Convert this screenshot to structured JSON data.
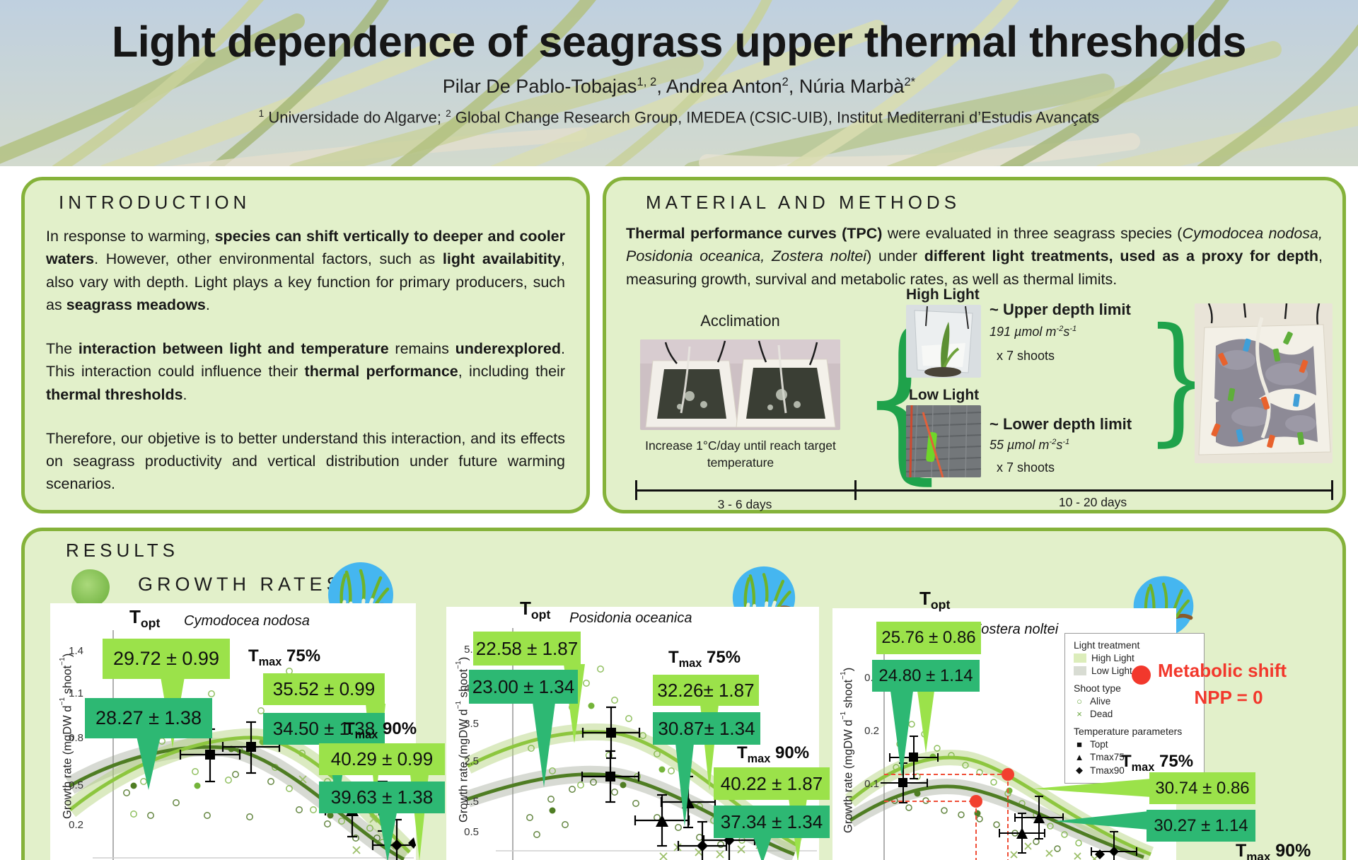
{
  "header": {
    "title": "Light dependence of seagrass upper thermal thresholds",
    "authors": [
      {
        "t": "Pilar De Pablo-Tobajas"
      },
      {
        "t": "1, 2",
        "sup": true
      },
      {
        "t": ", Andrea Anton"
      },
      {
        "t": "2",
        "sup": true
      },
      {
        "t": ", Núria Marbà"
      },
      {
        "t": "2*",
        "sup": true
      }
    ],
    "affiliations": [
      {
        "t": "1",
        "sup": true
      },
      {
        "t": " Universidade do Algarve; "
      },
      {
        "t": "2",
        "sup": true
      },
      {
        "t": " Global Change Research Group, IMEDEA (CSIC-UIB), Institut Mediterrani d’Estudis Avançats"
      }
    ]
  },
  "intro": {
    "heading": "INTRODUCTION",
    "p1": [
      {
        "t": "In response to warming, "
      },
      {
        "t": "species can shift vertically to deeper and cooler waters",
        "b": true
      },
      {
        "t": ". However, other environmental factors, such as "
      },
      {
        "t": "light availabitity",
        "b": true
      },
      {
        "t": ", also vary with depth. Light plays a key function for primary producers, such as "
      },
      {
        "t": "seagrass meadows",
        "b": true
      },
      {
        "t": "."
      }
    ],
    "p2": [
      {
        "t": "The "
      },
      {
        "t": "interaction between light and temperature",
        "b": true
      },
      {
        "t": " remains "
      },
      {
        "t": "underexplored",
        "b": true
      },
      {
        "t": ". This interaction could influence their "
      },
      {
        "t": "thermal performance",
        "b": true
      },
      {
        "t": ", including their "
      },
      {
        "t": "thermal thresholds",
        "b": true
      },
      {
        "t": "."
      }
    ],
    "p3": [
      {
        "t": "Therefore, our objetive is to better understand this interaction, and its effects on seagrass productivity and vertical distribution under future warming scenarios."
      }
    ]
  },
  "methods": {
    "heading": "MATERIAL AND METHODS",
    "p1": [
      {
        "t": "Thermal performance curves (TPC)",
        "b": true
      },
      {
        "t": " were evaluated in three seagrass species ("
      },
      {
        "t": "Cymodocea nodosa, Posidonia oceanica, Zostera noltei",
        "i": true
      },
      {
        "t": ") under "
      },
      {
        "t": "different light treatments, used as a proxy for depth",
        "b": true
      },
      {
        "t": ", measuring growth, survival and metabolic rates, as well as thermal limits."
      }
    ],
    "acclimation_label": "Acclimation",
    "acclimation_caption": "Increase 1°C/day until reach target temperature",
    "brace_left": "{",
    "brace_right": "}",
    "high_light_label": "High Light",
    "upper_depth_label": "~ Upper depth limit",
    "upper_irradiance": [
      {
        "t": "191  µmol m",
        "i": true
      },
      {
        "t": "-2",
        "i": true,
        "sup": true
      },
      {
        "t": "s",
        "i": true
      },
      {
        "t": "-1",
        "i": true,
        "sup": true
      }
    ],
    "upper_shoots": "x 7 shoots",
    "low_light_label": "Low Light",
    "lower_depth_label": "~ Lower depth limit",
    "lower_irradiance": [
      {
        "t": "55  µmol m",
        "i": true
      },
      {
        "t": "-2",
        "i": true,
        "sup": true
      },
      {
        "t": "s",
        "i": true
      },
      {
        "t": "-1",
        "i": true,
        "sup": true
      }
    ],
    "lower_shoots": "x 7 shoots",
    "timeline_left": "3 - 6 days",
    "timeline_right": "10 - 20 days"
  },
  "results": {
    "heading": "RESULTS",
    "subheading": "GROWTH RATES",
    "metabolic_line1": "Metabolic shift",
    "metabolic_line2": "NPP = 0",
    "param_labels": {
      "topt": [
        {
          "t": "T"
        },
        {
          "t": "opt",
          "sub": true
        }
      ],
      "tmax75": [
        {
          "t": "T"
        },
        {
          "t": "max",
          "sub": true
        },
        {
          "t": " 75%"
        }
      ],
      "tmax90": [
        {
          "t": "T"
        },
        {
          "t": "max",
          "sub": true
        },
        {
          "t": " 90%"
        }
      ]
    },
    "ylabel": [
      {
        "t": "Growth rate (mgDW d"
      },
      {
        "t": "−1",
        "sup": true
      },
      {
        "t": " shoot"
      },
      {
        "t": "−1",
        "sup": true
      },
      {
        "t": ")"
      }
    ],
    "charts": [
      {
        "species": "Cymodocea nodosa",
        "yticks": [
          "1.4",
          "1.1",
          "0.8",
          "0.5",
          "0.2"
        ],
        "topt_high": "29.72 ± 0.99",
        "topt_low": "28.27 ± 1.38",
        "tmax75_high": "35.52 ± 0.99",
        "tmax75_low": "34.50 ± 1.38",
        "tmax90_high": "40.29 ± 0.99",
        "tmax90_low": "39.63 ± 1.38"
      },
      {
        "species": "Posidonia oceanica",
        "yticks": [
          "5.5",
          "4.5",
          "3.5",
          "2.5",
          "1.5",
          "0.5"
        ],
        "topt_high": "22.58 ± 1.87",
        "topt_low": "23.00 ± 1.34",
        "tmax75_high": "32.26± 1.87",
        "tmax75_low": "30.87± 1.34",
        "tmax90_high": "40.22 ± 1.87",
        "tmax90_low": "37.34 ± 1.34"
      },
      {
        "species": "Zostera noltei",
        "yticks": [
          "0.3",
          "0.2",
          "0.1"
        ],
        "topt_high": "25.76 ± 0.86",
        "topt_low": "24.80 ± 1.14",
        "tmax75_high": "30.74 ± 0.86",
        "tmax75_low": "30.27 ± 1.14"
      }
    ],
    "legend": {
      "light_title": "Light treatment",
      "high_label": "High Light",
      "low_label": "Low Light",
      "shoot_title": "Shoot type",
      "alive_glyph": "○",
      "alive_label": "Alive",
      "dead_glyph": "×",
      "dead_label": "Dead",
      "temp_title": "Temperature parameters",
      "topt_glyph": "■",
      "topt_item": "Topt",
      "tmax75_glyph": "▲",
      "tmax75_item": "Tmax75",
      "tmax90_glyph": "◆",
      "tmax90_item": "Tmax90"
    }
  },
  "colors": {
    "box_border": "#85b23a",
    "box_fill": "#e2f0ca",
    "callout_high_light": "#9be24a",
    "callout_low_light": "#2db873",
    "curve_high_light": "#8dc63f",
    "curve_low_light": "#4f7d23",
    "brace_green": "#1fa24b",
    "metabolic_red": "#f2382c",
    "species_icon_circle": "#45b6f0"
  },
  "icons": {
    "growth_rates_bullet": "green-blob-icon",
    "species_badge": "seagrass-circle-icon",
    "metabolic_marker": "red-dot-icon"
  },
  "chart_data": [
    {
      "type": "line",
      "title": "Cymodocea nodosa",
      "ylabel": "Growth rate (mgDW d^-1 shoot^-1)",
      "yticks": [
        0.2,
        0.5,
        0.8,
        1.1,
        1.4
      ],
      "x_axis": "temperature (axis cropped at image bottom)",
      "grid": false,
      "series": [
        {
          "name": "High Light",
          "Topt": "29.72 ± 0.99",
          "Tmax75%": "35.52 ± 0.99",
          "Tmax90%": "40.29 ± 0.99"
        },
        {
          "name": "Low Light",
          "Topt": "28.27 ± 1.38",
          "Tmax75%": "34.50 ± 1.38",
          "Tmax90%": "39.63 ± 1.38"
        }
      ]
    },
    {
      "type": "line",
      "title": "Posidonia oceanica",
      "ylabel": "Growth rate (mgDW d^-1 shoot^-1)",
      "yticks": [
        0.5,
        1.5,
        2.5,
        3.5,
        4.5,
        5.5
      ],
      "x_axis": "temperature (axis cropped at image bottom)",
      "grid": false,
      "series": [
        {
          "name": "High Light",
          "Topt": "22.58 ± 1.87",
          "Tmax75%": "32.26± 1.87",
          "Tmax90%": "40.22 ± 1.87"
        },
        {
          "name": "Low Light",
          "Topt": "23.00 ± 1.34",
          "Tmax75%": "30.87± 1.34",
          "Tmax90%": "37.34 ± 1.34"
        }
      ]
    },
    {
      "type": "line",
      "title": "Zostera noltei",
      "ylabel": "Growth rate (mgDW d^-1 shoot^-1)",
      "yticks": [
        0.1,
        0.2,
        0.3
      ],
      "x_axis": "temperature (axis cropped at image bottom)",
      "grid": false,
      "series": [
        {
          "name": "High Light",
          "Topt": "25.76 ± 0.86",
          "Tmax75%": "30.74 ± 0.86"
        },
        {
          "name": "Low Light",
          "Topt": "24.80 ± 1.14",
          "Tmax75%": "30.27 ± 1.14"
        }
      ],
      "annotations": [
        "Red dots with dashed drop lines = Metabolic shift NPP = 0",
        "Tmax 90% label visible, values cropped by image edge"
      ]
    }
  ]
}
